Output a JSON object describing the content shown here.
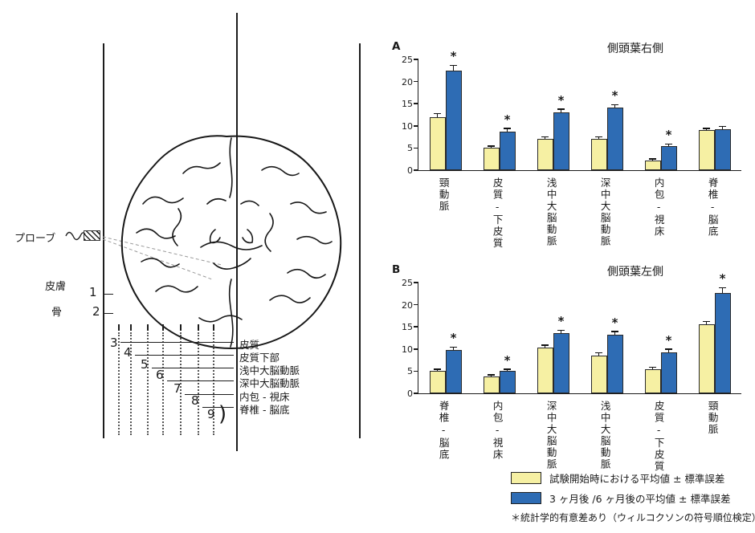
{
  "diagram": {
    "probe_label": "プローブ",
    "skin_label": "皮膚",
    "bone_label": "骨",
    "depth_numbers": [
      "1",
      "2",
      "3",
      "4",
      "5",
      "6",
      "7",
      "8",
      "9"
    ],
    "depth_labels": [
      "皮質",
      "皮質下部",
      "浅中大脳動脈",
      "深中大脳動脈",
      "内包 - 視床",
      "脊椎 - 脳底"
    ],
    "bracket": ")"
  },
  "chart_data": [
    {
      "type": "bar",
      "panel_label": "A",
      "title": "側頭葉右側",
      "categories": [
        "頸動脈",
        "皮質-下皮質",
        "浅中大脳動脈",
        "深中大脳動脈",
        "内包-視床",
        "脊椎-脳底"
      ],
      "series": [
        {
          "name": "試験開始時における平均値 ± 標準誤差",
          "color": "#f6f0a3",
          "values": [
            12,
            5,
            7,
            7,
            2.2,
            9
          ],
          "errors": [
            0.8,
            0.5,
            0.6,
            0.6,
            0.4,
            0.5
          ]
        },
        {
          "name": "3ヶ月後/6ヶ月後の平均値 ± 標準誤差",
          "color": "#2e6cb4",
          "values": [
            22.5,
            8.7,
            13,
            14.2,
            5.5,
            9.3
          ],
          "errors": [
            1.2,
            0.8,
            0.8,
            0.6,
            0.5,
            0.6
          ]
        }
      ],
      "significant": [
        true,
        true,
        true,
        true,
        true,
        false
      ],
      "significance_marker": "*",
      "ylim": [
        0,
        25
      ],
      "yticks": [
        0,
        5,
        10,
        15,
        20,
        25
      ],
      "grid": false,
      "legend_position": "bottom-right-of-figure"
    },
    {
      "type": "bar",
      "panel_label": "B",
      "title": "側頭葉左側",
      "categories": [
        "脊椎-脳底",
        "内包-視床",
        "深中大脳動脈",
        "浅中大脳動脈",
        "皮質-下皮質",
        "頸動脈"
      ],
      "series": [
        {
          "name": "試験開始時における平均値 ± 標準誤差",
          "color": "#f6f0a3",
          "values": [
            5,
            3.8,
            10.3,
            8.5,
            5.5,
            15.5
          ],
          "errors": [
            0.5,
            0.4,
            0.6,
            0.7,
            0.5,
            0.8
          ]
        },
        {
          "name": "3ヶ月後/6ヶ月後の平均値 ± 標準誤差",
          "color": "#2e6cb4",
          "values": [
            9.7,
            5,
            13.5,
            13.2,
            9.3,
            22.7
          ],
          "errors": [
            0.8,
            0.5,
            0.8,
            0.8,
            0.7,
            1.2
          ]
        }
      ],
      "significant": [
        true,
        true,
        true,
        true,
        true,
        true
      ],
      "significance_marker": "*",
      "ylim": [
        0,
        25
      ],
      "yticks": [
        0,
        5,
        10,
        15,
        20,
        25
      ],
      "grid": false,
      "legend_position": "bottom-right-of-figure"
    }
  ],
  "legend": {
    "items": [
      {
        "label": "試験開始時における平均値 ± 標準誤差",
        "color": "#f6f0a3"
      },
      {
        "label": "3 ヶ月後 /6 ヶ月後の平均値 ± 標準誤差",
        "color": "#2e6cb4"
      }
    ],
    "footnote": "＊統計学的有意差あり（ウィルコクソンの符号順位検定）"
  }
}
